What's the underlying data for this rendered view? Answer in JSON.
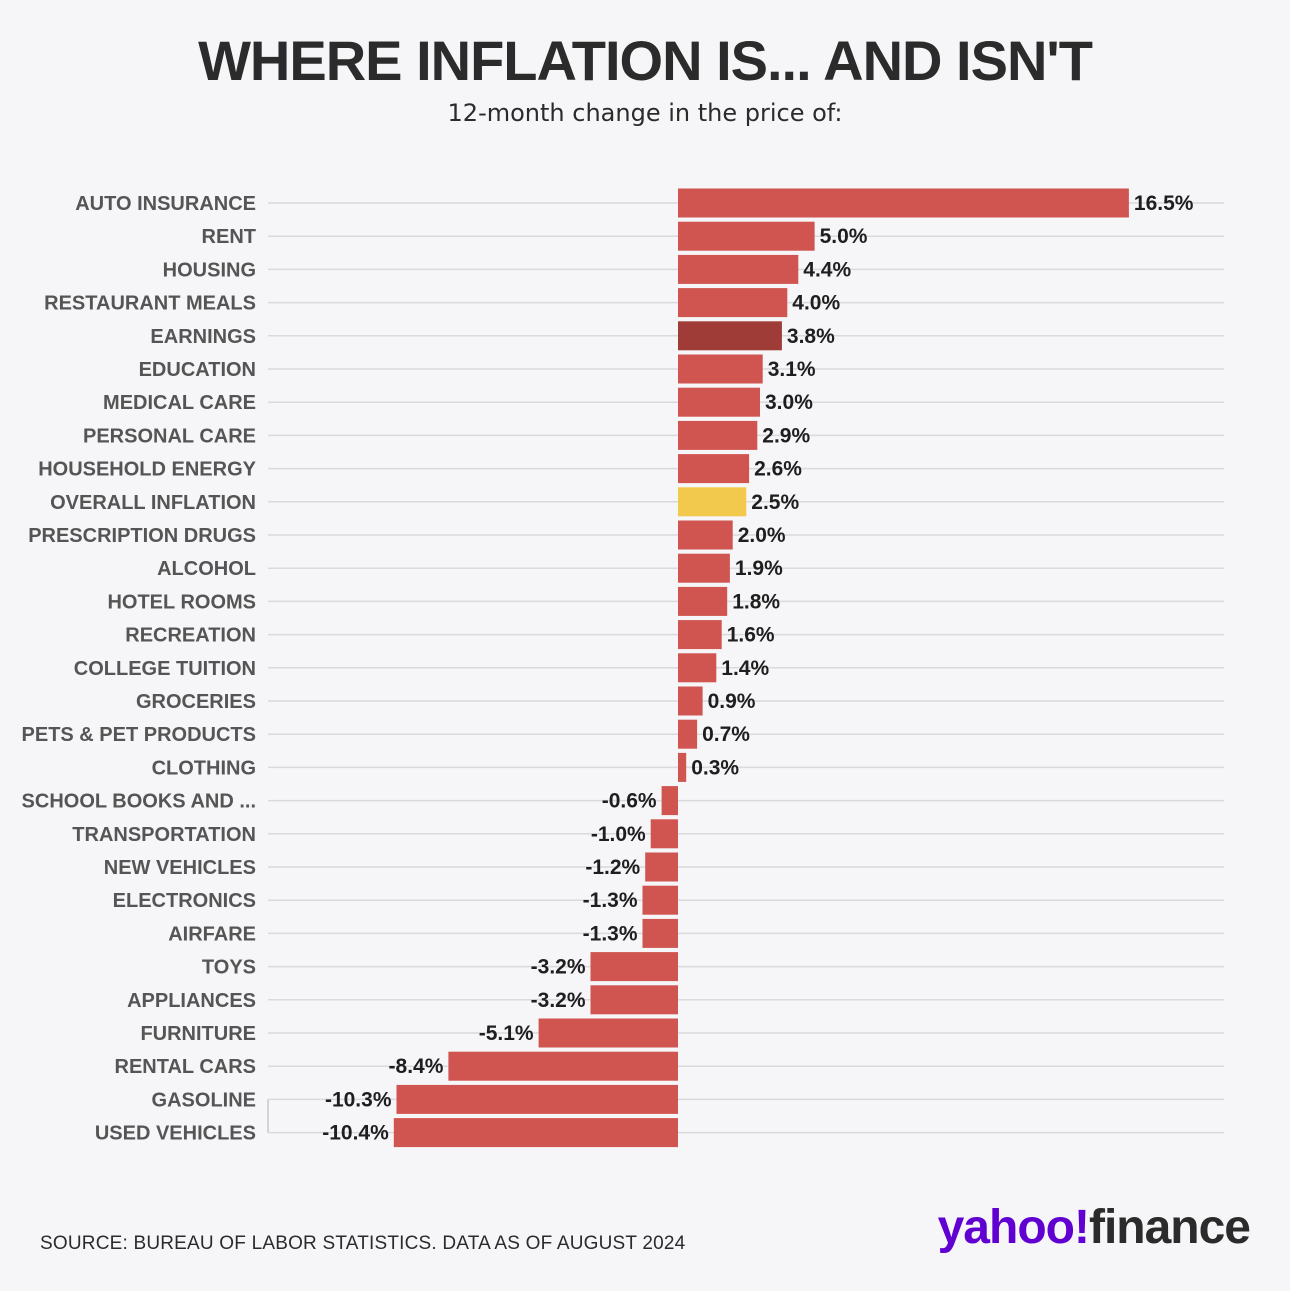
{
  "header": {
    "title": "WHERE INFLATION IS... AND ISN'T",
    "subtitle": "12-month change in the price of:"
  },
  "footer": {
    "source": "SOURCE: BUREAU OF LABOR STATISTICS. DATA AS OF AUGUST 2024",
    "logo_yahoo": "yahoo!",
    "logo_finance": "finance"
  },
  "colors": {
    "bar": "#d05450",
    "highlight_earnings": "#a03c37",
    "highlight_overall": "#f2c94c",
    "gridline": "#d9d9de",
    "label": "#555555",
    "value": "#1e1e1e"
  },
  "chart_data": {
    "type": "bar",
    "orientation": "horizontal",
    "title": "WHERE INFLATION IS... AND ISN'T",
    "subtitle": "12-month change in the price of:",
    "unit": "%",
    "xlim": [
      -10.4,
      16.5
    ],
    "grid": true,
    "categories": [
      "AUTO INSURANCE",
      "RENT",
      "HOUSING",
      "RESTAURANT MEALS",
      "EARNINGS",
      "EDUCATION",
      "MEDICAL CARE",
      "PERSONAL CARE",
      "HOUSEHOLD ENERGY",
      "OVERALL INFLATION",
      "PRESCRIPTION DRUGS",
      "ALCOHOL",
      "HOTEL ROOMS",
      "RECREATION",
      "COLLEGE TUITION",
      "GROCERIES",
      "PETS & PET PRODUCTS",
      "CLOTHING",
      "SCHOOL BOOKS AND ...",
      "TRANSPORTATION",
      "NEW VEHICLES",
      "ELECTRONICS",
      "AIRFARE",
      "TOYS",
      "APPLIANCES",
      "FURNITURE",
      "RENTAL CARS",
      "GASOLINE",
      "USED VEHICLES"
    ],
    "values": [
      16.5,
      5.0,
      4.4,
      4.0,
      3.8,
      3.1,
      3.0,
      2.9,
      2.6,
      2.5,
      2.0,
      1.9,
      1.8,
      1.6,
      1.4,
      0.9,
      0.7,
      0.3,
      -0.6,
      -1.0,
      -1.2,
      -1.3,
      -1.3,
      -3.2,
      -3.2,
      -5.1,
      -8.4,
      -10.3,
      -10.4
    ],
    "value_labels": [
      "16.5%",
      "5.0%",
      "4.4%",
      "4.0%",
      "3.8%",
      "3.1%",
      "3.0%",
      "2.9%",
      "2.6%",
      "2.5%",
      "2.0%",
      "1.9%",
      "1.8%",
      "1.6%",
      "1.4%",
      "0.9%",
      "0.7%",
      "0.3%",
      "-0.6%",
      "-1.0%",
      "-1.2%",
      "-1.3%",
      "-1.3%",
      "-3.2%",
      "-3.2%",
      "-5.1%",
      "-8.4%",
      "-10.3%",
      "-10.4%"
    ],
    "highlights": {
      "EARNINGS": "highlight_earnings",
      "OVERALL INFLATION": "highlight_overall"
    }
  }
}
